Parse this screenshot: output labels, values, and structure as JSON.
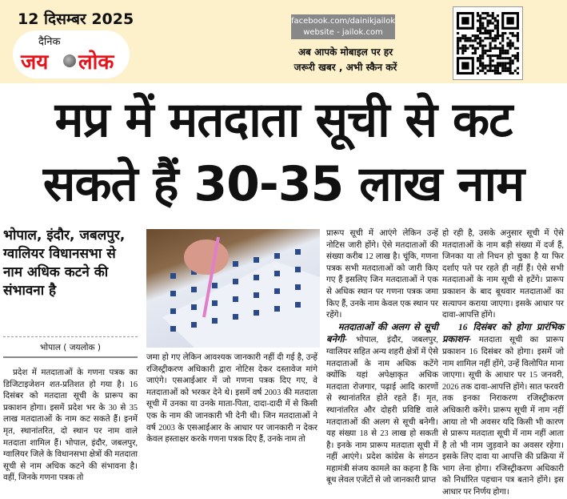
{
  "header": {
    "date": "12 दिसम्बर 2025",
    "logo": {
      "dainik": "दैनिक",
      "jay": "जय",
      "lok": "लोक",
      "brand_color": "#e3141b"
    },
    "social": {
      "facebook": "facebook.com/dainikjailok",
      "website": "website - jailok.com"
    },
    "promo": {
      "line1": "अब आपके मोबाइल पर हर",
      "line2": "जरूरी खबर , अभी स्कैन करें"
    },
    "qr_icon": "whatsapp-qr-code"
  },
  "headline": {
    "line1": "मप्र में मतदाता सूची से कट",
    "line2": "सकते हैं 30-35 लाख नाम"
  },
  "subheadline": "भोपाल, इंदौर, जबलपुर, ग्वालियर विधानसभा से नाम अधिक कटने की संभावना है",
  "dateline": "भोपाल ( जयलोक )",
  "photo_icon": "voter-list-photo",
  "article": {
    "col1": "प्रदेश में मतदाताओं के गणना पत्रक का डिजिटाइजेशन शत-प्रतिशत हो गया है। 16 दिसंबर को मतदाता सूची के प्रारूप का प्रकाशन होगा। इसमें प्रदेश भर के 30 से 35 लाख मतदाताओं के नाम कट सकते हैं। इनमें मृत, स्थानांतरित, दो स्थान पर नाम वाले मतदाता शामिल हैं। भोपाल, इंदौर, जबलपुर, ग्वालियर जिले के विधानसभा क्षेत्रों की मतदाता सूची से नाम अधिक कटने की संभावना है। वहीं, जिनके गणना पत्रक तो",
    "col2": "जमा हो गए लेकिन आवश्यक जानकारी नहीं दी गई है, उन्हें रजिस्ट्रीकरण अधिकारी द्वारा नोटिस देकर दस्तावेज मांगे जाएंगे। एसआईआर में जो गणना पत्रक दिए गए, वे मतदाताओं को भरकर देने थे। इसमें वर्ष 2003 की मतदाता सूची में उनका या उनके माता-पिता, दादा-दादी में से किसी एक के नाम की जानकारी भी देनी थी। जिन मतदाताओं ने वर्ष 2003 के एसआईआर के आधार पर जानकारी न देकर केवल हस्ताक्षर करके गणना पत्रक दिए हैं, उनके नाम तो",
    "col3_a": "प्रारूप सूची में आएंगे लेकिन उन्हें नोटिस जारी होंगे। ऐसे मतदाताओं की संख्या करीब 12 लाख है। चूंकि, गणना पत्रक सभी मतदाताओं को जारी किए गए हैं इसलिए जिन मतदाताओं ने एक से अधिक स्थान पर गणना पत्रक जमा किए हैं, उनके नाम केवल एक स्थान पर रहेंगे।",
    "col3_heading": "मतदाताओं की अलग से सूची बनेगी-",
    "col3_b": " भोपाल, इंदौर, जबलपुर, ग्वालियर सहित अन्य शहरी क्षेत्रों में ऐसे मतदाताओं के नाम अधिक कटेंगे क्योंकि यहां अपेक्षाकृत अधिक मतदाता रोजगार, पढ़ाई आदि कारणों से स्थानांतरित होते रहते हैं। मृत, स्थानांतरित और दोहरी प्रविष्टि वाले मतदाताओं की अलग से सूची बनेगी। यह संख्या 18 से 23 लाख हो सकती है। इनके नाम प्रारूप मतदाता सूची में नहीं आएंगे। प्रदेश कांग्रेस के संगठन महामंत्री संजय कामले का कहना है कि बूथ लेवल एजेंटों से जो जानकारी प्राप्त",
    "col4_a": "हो रही है, उसके अनुसार सूची में ऐसे मतदाताओं के नाम बड़ी संख्या में दर्ज हैं, जिनका या तो निधन हो चुका है या फिर दर्शाए पते पर रहते ही नहीं हैं। ऐसे सभी मतदाताओं के नाम सूची से हटेंगे। प्रारूप प्रकाशन के बाद बूथवार मतदाताओं का सत्यापन कराया जाएगा। इसके आधार पर दावा-आपत्ति होंगे।",
    "col4_heading": "16 दिसंबर को होगा प्रारंभिक प्रकाशन-",
    "col4_b": " मतदाता सूची का प्रारूप प्रकाशन 16 दिसंबर को होगा। इसमें जो नाम शामिल नहीं होंगे, उन्हें विलोपित माना जाएगा। सूची के आधार पर 15 जनवरी, 2026 तक दावा-आपत्ति होंगे। सात फरवरी तक इनका निराकरण रजिस्ट्रीकरण अधिकारी करेंगे। प्रारूप सूची में नाम नहीं आया तो भी अवसर यदि किसी भी कारण से प्रारूप मतदाता सूची में नाम नहीं आता है तो भी नाम जुड़वाने का अवसर रहेगा। इसके लिए दावा या आपत्ति की प्रक्रिया में भाग लेना होगा। रजिस्ट्रीकरण अधिकारी को निर्धारित पहचान पत्र बताने होंगे। इस आधार पर निर्णय होगा।"
  }
}
